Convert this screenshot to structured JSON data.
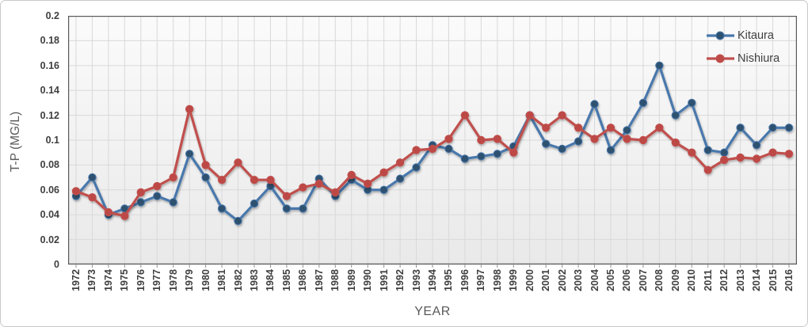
{
  "chart_data": {
    "type": "line",
    "title": "",
    "xlabel": "YEAR",
    "ylabel": "T-P (MG/L)",
    "ylim": [
      0,
      0.2
    ],
    "y_tick_step": 0.02,
    "y_tick_labels": [
      "0.2",
      "0.18",
      "0.16",
      "0.14",
      "0.12",
      "0.1",
      "0.08",
      "0.06",
      "0.04",
      "0.02",
      "0"
    ],
    "grid": true,
    "legend_position": "top-right-inside",
    "categories": [
      "1972",
      "1973",
      "1974",
      "1975",
      "1976",
      "1977",
      "1978",
      "1979",
      "1980",
      "1981",
      "1982",
      "1983",
      "1984",
      "1985",
      "1986",
      "1987",
      "1988",
      "1989",
      "1990",
      "1991",
      "1992",
      "1993",
      "1994",
      "1995",
      "1996",
      "1997",
      "1998",
      "1999",
      "2000",
      "2001",
      "2002",
      "2003",
      "2004",
      "2005",
      "2006",
      "2007",
      "2008",
      "2009",
      "2010",
      "2011",
      "2012",
      "2013",
      "2014",
      "2015",
      "2016"
    ],
    "series": [
      {
        "name": "Kitaura",
        "line_color": "#4878ac",
        "marker_color": "#2d5170",
        "values": [
          0.055,
          0.07,
          0.04,
          0.045,
          0.05,
          0.055,
          0.05,
          0.089,
          0.07,
          0.045,
          0.035,
          0.049,
          0.063,
          0.045,
          0.045,
          0.069,
          0.055,
          0.068,
          0.06,
          0.06,
          0.069,
          0.078,
          0.096,
          0.093,
          0.085,
          0.087,
          0.089,
          0.095,
          0.12,
          0.097,
          0.093,
          0.099,
          0.129,
          0.092,
          0.108,
          0.13,
          0.16,
          0.12,
          0.13,
          0.092,
          0.09,
          0.11,
          0.096,
          0.11,
          0.11
        ]
      },
      {
        "name": "Nishiura",
        "line_color": "#c0504d",
        "marker_color": "#bd4a47",
        "values": [
          0.059,
          0.054,
          0.042,
          0.039,
          0.058,
          0.063,
          0.07,
          0.125,
          0.08,
          0.068,
          0.082,
          0.068,
          0.068,
          0.055,
          0.062,
          0.065,
          0.058,
          0.072,
          0.065,
          0.074,
          0.082,
          0.092,
          0.093,
          0.101,
          0.12,
          0.1,
          0.101,
          0.09,
          0.12,
          0.11,
          0.12,
          0.11,
          0.101,
          0.11,
          0.101,
          0.1,
          0.11,
          0.098,
          0.09,
          0.076,
          0.084,
          0.086,
          0.085,
          0.09,
          0.089
        ]
      }
    ]
  },
  "colors": {
    "grid": "#d9d9d9",
    "tick_mark": "#8e8e8e",
    "plot_border": "#595959",
    "tick_text": "#3f3f3f",
    "axis_title_text": "#595959",
    "legend_text": "#404040",
    "plot_bg_top": "#fbfbfb",
    "plot_bg_bottom": "#e9e9e9"
  }
}
